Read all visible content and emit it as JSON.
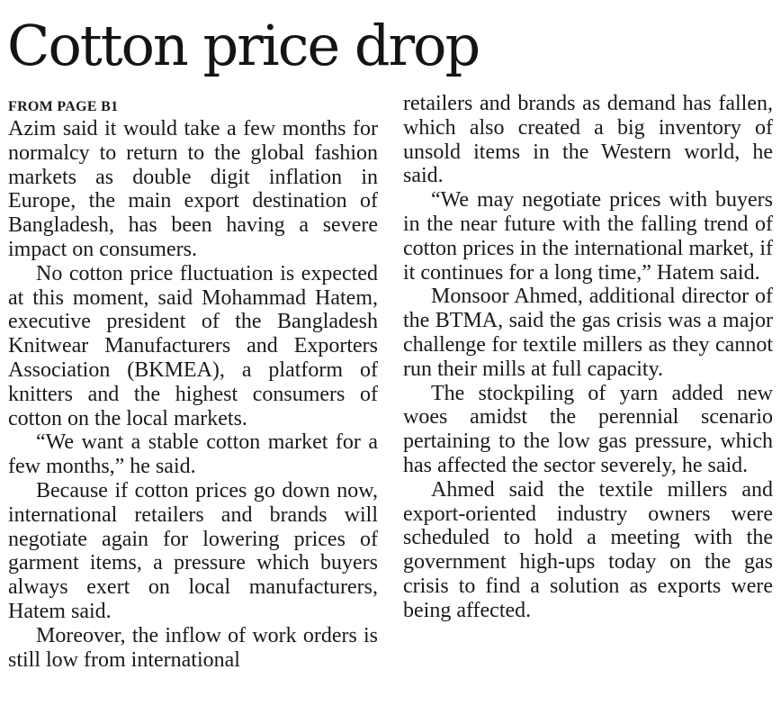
{
  "article": {
    "headline": "Cotton price drop",
    "kicker": "FROM PAGE B1",
    "left_column": [
      "Azim said it would take a few months for normalcy to return to the global fashion markets as double digit inflation in Europe, the main export destination of Bangladesh, has been having a severe impact on consumers.",
      "No cotton price fluctuation is expected at this moment, said Mohammad Hatem, executive president of the Bangladesh Knitwear Manufacturers and Exporters Association (BKMEA), a platform of knitters and the highest consumers of cotton on the local markets.",
      "“We want a stable cotton market for a few months,” he said.",
      "Because if cotton prices go down now, international retailers and brands will negotiate again for lowering prices of garment items, a pressure which buyers always exert on local manufacturers, Hatem said.",
      "Moreover, the inflow of work orders is still low from international"
    ],
    "right_column": [
      "retailers and brands as demand has fallen, which also created a big inventory of unsold items in the Western world, he said.",
      "“We may negotiate prices with buyers in the near future with the falling trend of cotton prices in the international market, if it continues for a long time,” Hatem said.",
      "Monsoor Ahmed, additional director of the BTMA, said the gas crisis was a major challenge for textile millers as they cannot run their mills at full capacity.",
      "The stockpiling of yarn added new woes amidst the perennial scenario pertaining to the low gas pressure, which has affected the sector severely, he said.",
      "Ahmed said the textile millers and export-oriented industry owners were scheduled to hold a meeting with the government high-ups today on the gas crisis to find a solution as exports were being affected."
    ]
  }
}
